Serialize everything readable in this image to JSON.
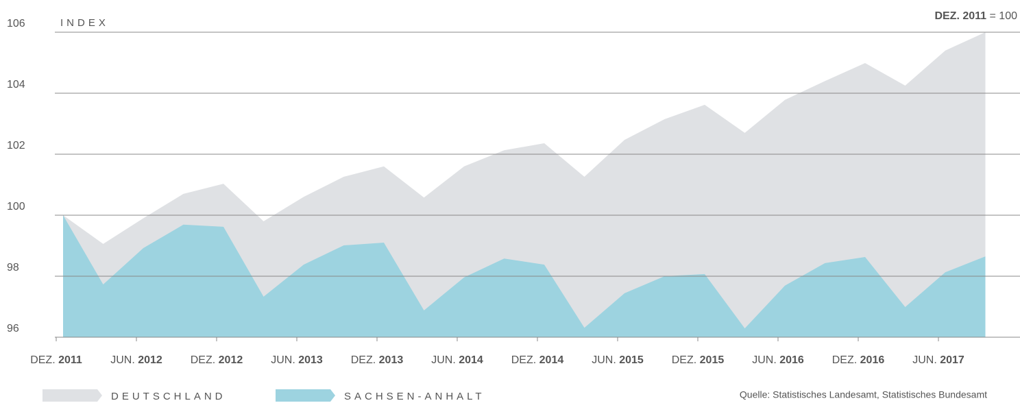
{
  "chart_data": {
    "type": "area",
    "y_label": "INDEX",
    "annotation_bold": "DEZ. 2011",
    "annotation": "= 100",
    "source": "Quelle: Statistisches Landesamt, Statistisches Bundesamt",
    "categories": [
      "DEZ. 2011",
      null,
      "JUN. 2012",
      null,
      "DEZ. 2012",
      null,
      "JUN. 2013",
      null,
      "DEZ. 2013",
      null,
      "JUN. 2014",
      null,
      "DEZ. 2014",
      null,
      "JUN. 2015",
      null,
      "DEZ. 2015",
      null,
      "JUN. 2016",
      null,
      "DEZ. 2016",
      null,
      "JUN. 2017",
      null
    ],
    "series": [
      {
        "name": "DEUTSCHLAND",
        "color": "#dfe1e4",
        "values": [
          100,
          99.06,
          99.9,
          100.7,
          101.03,
          99.8,
          100.6,
          101.26,
          101.6,
          100.58,
          101.6,
          102.13,
          102.36,
          101.26,
          102.47,
          103.15,
          103.62,
          102.7,
          103.78,
          104.4,
          104.99,
          104.25,
          105.4,
          106
        ]
      },
      {
        "name": "SACHSEN-ANHALT",
        "color": "#9dd3e0",
        "values": [
          100,
          97.73,
          98.92,
          99.69,
          99.62,
          97.33,
          98.38,
          99.01,
          99.1,
          96.88,
          97.96,
          98.58,
          98.38,
          96.31,
          97.44,
          98.0,
          98.07,
          96.29,
          97.69,
          98.43,
          98.63,
          96.99,
          98.13,
          98.65
        ]
      }
    ],
    "ylim": [
      96,
      106
    ],
    "yticks": [
      96,
      98,
      100,
      102,
      104,
      106
    ],
    "grid": true
  }
}
